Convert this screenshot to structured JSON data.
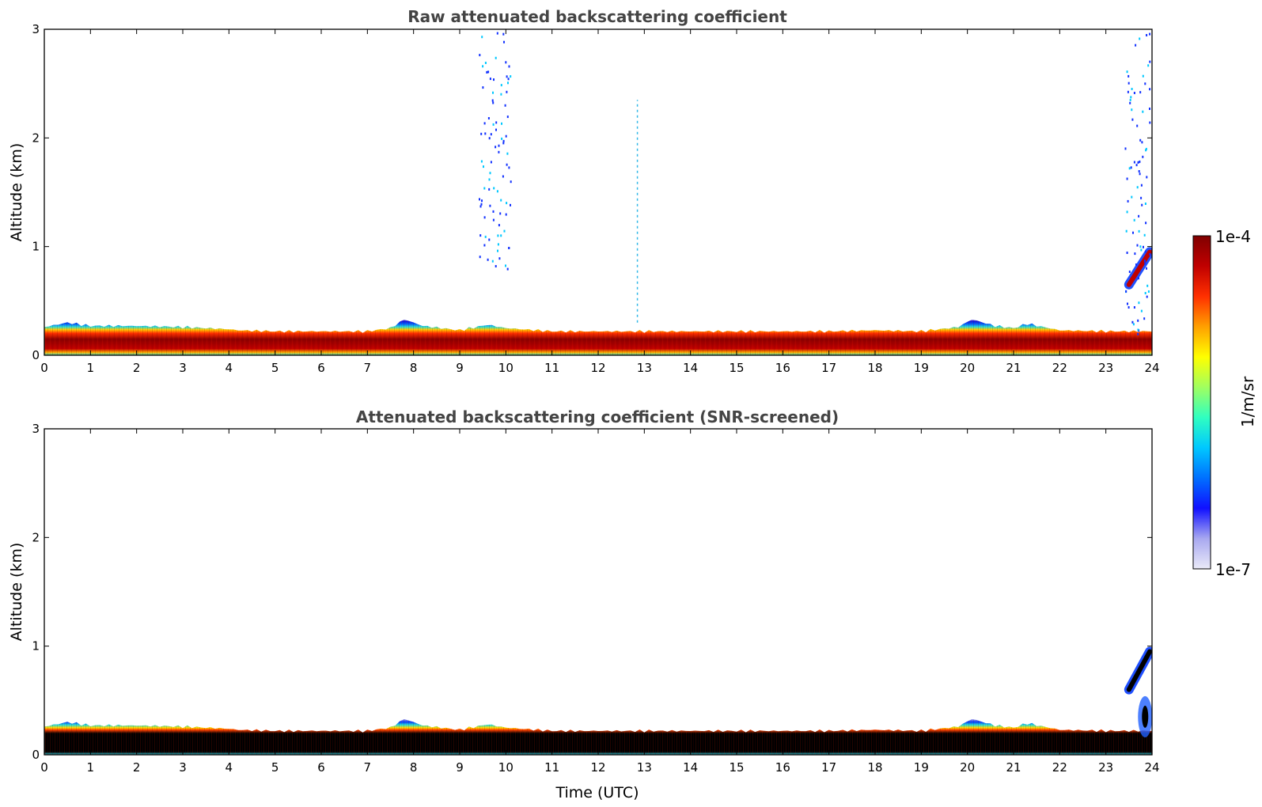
{
  "chart_data": [
    {
      "type": "heatmap",
      "title": "Raw attenuated backscattering coefficient",
      "xlabel": "",
      "ylabel": "Altitude (km)",
      "xlim": [
        0,
        24
      ],
      "ylim": [
        0,
        3
      ],
      "xticks": [
        "0",
        "1",
        "2",
        "3",
        "4",
        "5",
        "6",
        "7",
        "8",
        "9",
        "10",
        "11",
        "12",
        "13",
        "14",
        "15",
        "16",
        "17",
        "18",
        "19",
        "20",
        "21",
        "22",
        "23",
        "24"
      ],
      "yticks": [
        "0",
        "1",
        "2",
        "3"
      ],
      "layer_top_km": [
        [
          0,
          0.26
        ],
        [
          0.5,
          0.3
        ],
        [
          1,
          0.27
        ],
        [
          2,
          0.27
        ],
        [
          3,
          0.26
        ],
        [
          4,
          0.24
        ],
        [
          4.2,
          0.23
        ],
        [
          5,
          0.22
        ],
        [
          6,
          0.22
        ],
        [
          7,
          0.22
        ],
        [
          7.5,
          0.25
        ],
        [
          7.8,
          0.33
        ],
        [
          8.2,
          0.27
        ],
        [
          8.6,
          0.25
        ],
        [
          9,
          0.23
        ],
        [
          9.6,
          0.28
        ],
        [
          10,
          0.25
        ],
        [
          11,
          0.22
        ],
        [
          12,
          0.22
        ],
        [
          13,
          0.22
        ],
        [
          14,
          0.22
        ],
        [
          15,
          0.22
        ],
        [
          16,
          0.22
        ],
        [
          17,
          0.22
        ],
        [
          18,
          0.23
        ],
        [
          19,
          0.22
        ],
        [
          19.8,
          0.26
        ],
        [
          20.1,
          0.33
        ],
        [
          20.6,
          0.27
        ],
        [
          21,
          0.25
        ],
        [
          21.3,
          0.29
        ],
        [
          22,
          0.23
        ],
        [
          23,
          0.22
        ],
        [
          23.4,
          0.22
        ],
        [
          24,
          0.22
        ]
      ],
      "features": [
        {
          "kind": "vertical streak",
          "time_utc": 12.85,
          "altitude_km": [
            0.3,
            2.35
          ]
        },
        {
          "kind": "rising layer",
          "time_utc": [
            23.5,
            23.95
          ],
          "altitude_km": [
            0.6,
            1.0
          ]
        },
        {
          "kind": "scattered returns",
          "time_utc": [
            23.4,
            24
          ],
          "altitude_km": [
            0.2,
            3.0
          ]
        },
        {
          "kind": "scattered returns",
          "time_utc": [
            9.4,
            10.1
          ],
          "altitude_km": [
            0.8,
            3.0
          ]
        }
      ]
    },
    {
      "type": "heatmap",
      "title": "Attenuated backscattering coefficient (SNR-screened)",
      "xlabel": "Time (UTC)",
      "ylabel": "Altitude (km)",
      "xlim": [
        0,
        24
      ],
      "ylim": [
        0,
        3
      ],
      "xticks": [
        "0",
        "1",
        "2",
        "3",
        "4",
        "5",
        "6",
        "7",
        "8",
        "9",
        "10",
        "11",
        "12",
        "13",
        "14",
        "15",
        "16",
        "17",
        "18",
        "19",
        "20",
        "21",
        "22",
        "23",
        "24"
      ],
      "yticks": [
        "0",
        "1",
        "2",
        "3"
      ],
      "features": [
        {
          "kind": "rising layer",
          "time_utc": [
            23.5,
            23.95
          ],
          "altitude_km": [
            0.55,
            1.0
          ]
        },
        {
          "kind": "near-surface plume",
          "time_utc": [
            23.7,
            24
          ],
          "altitude_km": [
            0.2,
            0.5
          ]
        }
      ]
    }
  ],
  "colorbar": {
    "label": "1/m/sr",
    "max_label": "1e-4",
    "min_label": "1e-7",
    "range": [
      1e-07,
      0.0001
    ],
    "scale": "log",
    "colormap": [
      "#eaeaf8",
      "#a8a8f0",
      "#1010ff",
      "#0070ff",
      "#00c8ff",
      "#30ffc0",
      "#a0ff60",
      "#ffff00",
      "#ffa000",
      "#ff3000",
      "#c00000",
      "#800000"
    ]
  },
  "colors": {
    "saturated_core_screened": "#000000",
    "axis": "#000000",
    "title": "#444444"
  }
}
